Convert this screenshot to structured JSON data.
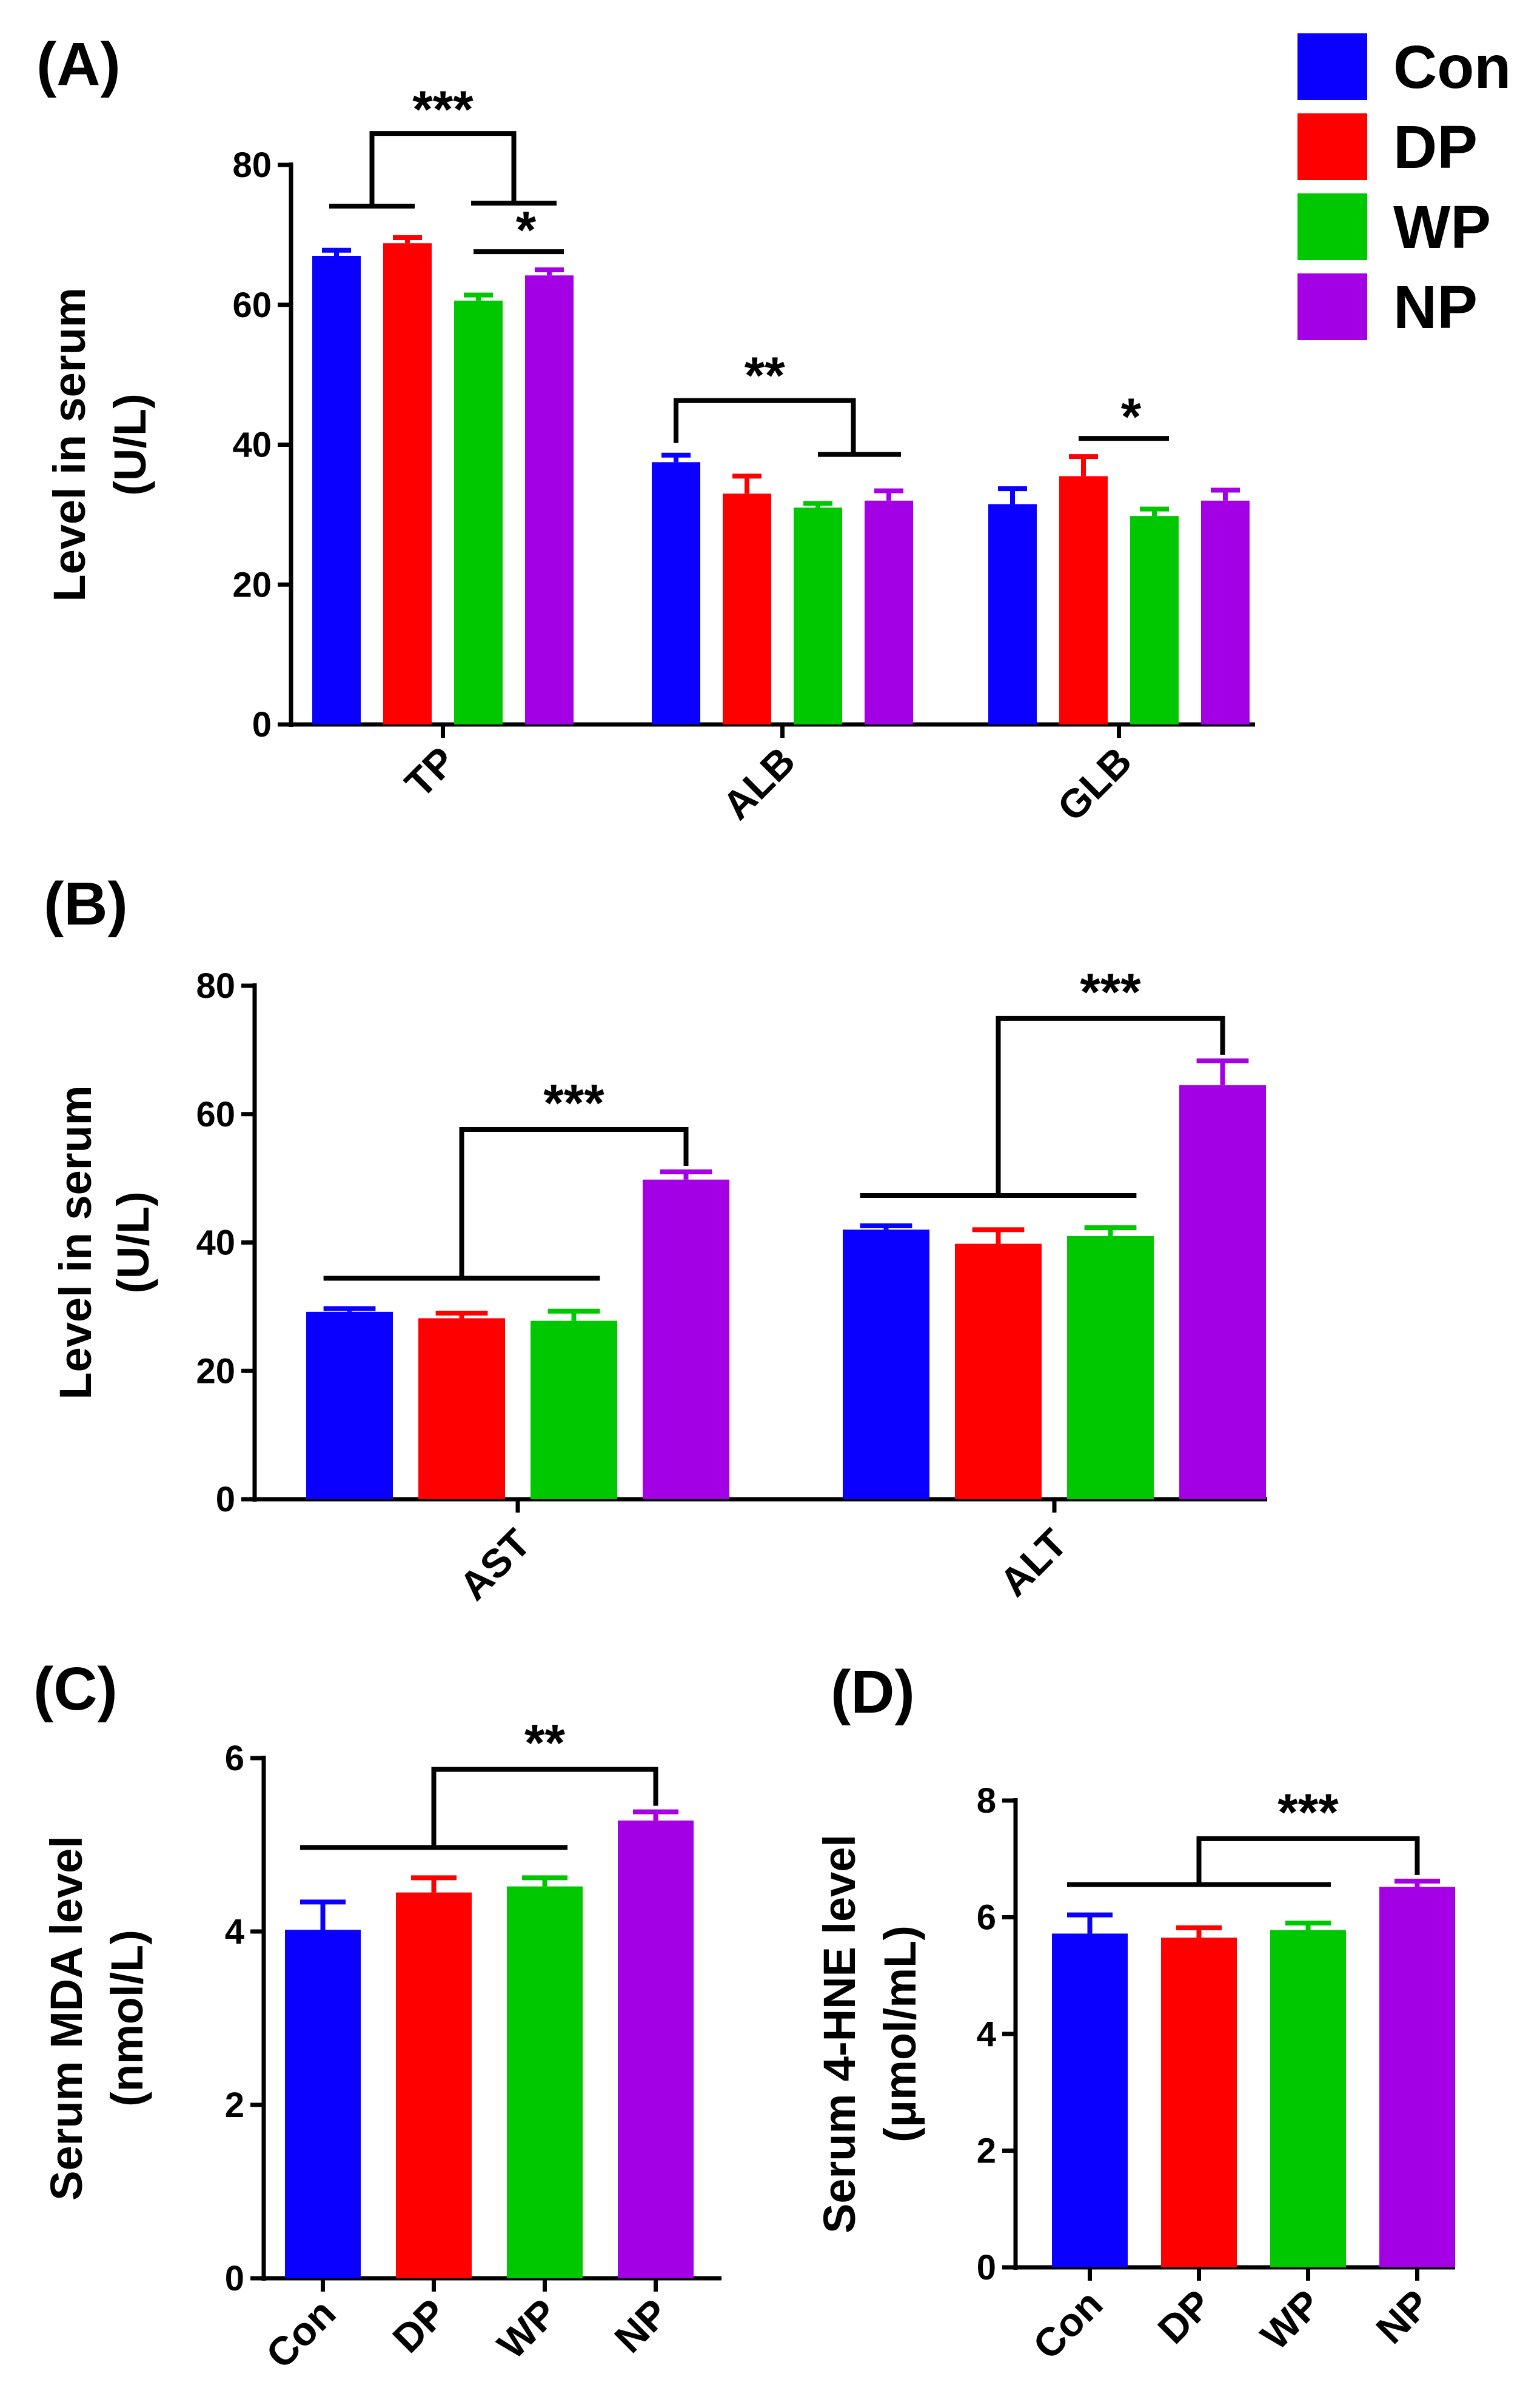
{
  "legend": {
    "items": [
      {
        "name": "Con",
        "color": "#0a00ff"
      },
      {
        "name": "DP",
        "color": "#ff0000"
      },
      {
        "name": "WP",
        "color": "#00c800"
      },
      {
        "name": "NP",
        "color": "#a400e6"
      }
    ]
  },
  "chart_data": [
    {
      "id": "A",
      "panel_label": "(A)",
      "type": "bar",
      "ylabel_lines": [
        "Level in serum",
        "(U/L)"
      ],
      "ylim": [
        0,
        80
      ],
      "yticks": [
        0,
        20,
        40,
        60,
        80
      ],
      "categories": [
        "TP",
        "ALB",
        "GLB"
      ],
      "series": [
        {
          "name": "Con",
          "values": [
            67.0,
            37.5,
            31.5
          ],
          "errors": [
            0.8,
            1.0,
            2.2
          ]
        },
        {
          "name": "DP",
          "values": [
            68.8,
            33.0,
            35.5
          ],
          "errors": [
            0.8,
            2.5,
            2.8
          ]
        },
        {
          "name": "WP",
          "values": [
            60.6,
            31.0,
            29.8
          ],
          "errors": [
            0.8,
            0.6,
            1.0
          ]
        },
        {
          "name": "NP",
          "values": [
            64.2,
            32.0,
            32.0
          ],
          "errors": [
            0.8,
            1.4,
            1.5
          ]
        }
      ],
      "significance": [
        {
          "label": "***",
          "category": 0,
          "groupA": [
            0,
            1
          ],
          "groupB": [
            2,
            3
          ]
        },
        {
          "label": "*",
          "category": 0,
          "pair": [
            2,
            3
          ]
        },
        {
          "label": "**",
          "category": 1,
          "from": 0,
          "groupB": [
            2,
            3
          ]
        },
        {
          "label": "*",
          "category": 2,
          "pair": [
            1,
            2
          ]
        }
      ]
    },
    {
      "id": "B",
      "panel_label": "(B)",
      "type": "bar",
      "ylabel_lines": [
        "Level in serum",
        "(U/L)"
      ],
      "ylim": [
        0,
        80
      ],
      "yticks": [
        0,
        20,
        40,
        60,
        80
      ],
      "categories": [
        "AST",
        "ALT"
      ],
      "series": [
        {
          "name": "Con",
          "values": [
            29.2,
            42.0
          ],
          "errors": [
            0.5,
            0.6
          ]
        },
        {
          "name": "DP",
          "values": [
            28.2,
            39.8
          ],
          "errors": [
            0.8,
            2.2
          ]
        },
        {
          "name": "WP",
          "values": [
            27.8,
            41.0
          ],
          "errors": [
            1.5,
            1.3
          ]
        },
        {
          "name": "NP",
          "values": [
            49.8,
            64.5
          ],
          "errors": [
            1.2,
            3.8
          ]
        }
      ],
      "significance": [
        {
          "label": "***",
          "category": 0,
          "groupA": [
            0,
            2
          ],
          "to": 3
        },
        {
          "label": "***",
          "category": 1,
          "groupA": [
            0,
            2
          ],
          "to": 3
        }
      ]
    },
    {
      "id": "C",
      "panel_label": "(C)",
      "type": "bar",
      "ylabel_lines": [
        "Serum MDA level",
        "(nmol/L)"
      ],
      "ylim": [
        0,
        6
      ],
      "yticks": [
        0,
        2,
        4,
        6
      ],
      "categories": [
        "Con",
        "DP",
        "WP",
        "NP"
      ],
      "values": [
        4.02,
        4.45,
        4.52,
        5.28
      ],
      "errors": [
        0.32,
        0.17,
        0.1,
        0.1
      ],
      "significance": [
        {
          "label": "**",
          "groupA": [
            0,
            2
          ],
          "to": 3
        }
      ]
    },
    {
      "id": "D",
      "panel_label": "(D)",
      "type": "bar",
      "ylabel_lines": [
        "Serum 4-HNE level",
        "(μmol/mL)"
      ],
      "ylim": [
        0,
        8
      ],
      "yticks": [
        0,
        2,
        4,
        6,
        8
      ],
      "categories": [
        "Con",
        "DP",
        "WP",
        "NP"
      ],
      "values": [
        5.72,
        5.65,
        5.78,
        6.52
      ],
      "errors": [
        0.32,
        0.17,
        0.12,
        0.1
      ],
      "significance": [
        {
          "label": "***",
          "groupA": [
            0,
            2
          ],
          "to": 3
        }
      ]
    }
  ]
}
